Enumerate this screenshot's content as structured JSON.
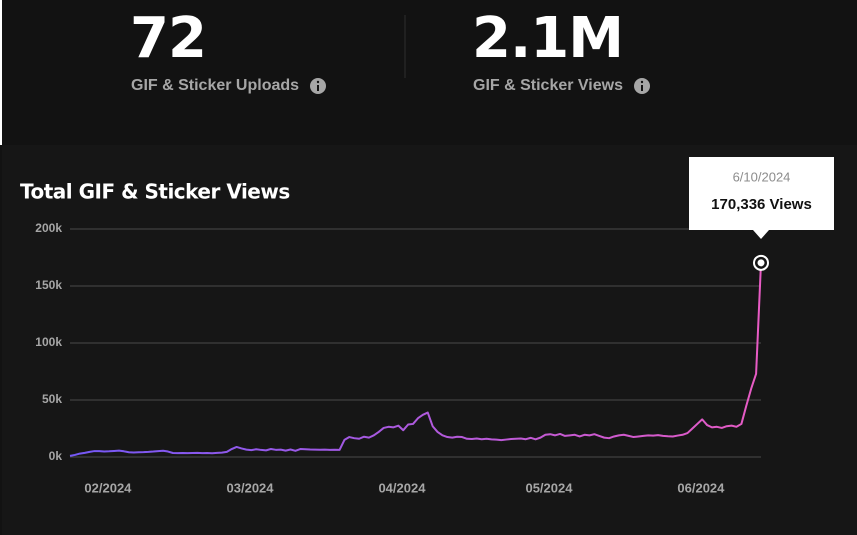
{
  "stats": [
    {
      "value": "72",
      "label": "GIF & Sticker Uploads"
    },
    {
      "value": "2.1M",
      "label": "GIF & Sticker Views"
    }
  ],
  "chart_data": {
    "type": "line",
    "title": "Total GIF & Sticker Views",
    "x": [
      "1/21/2024",
      "1/22/2024",
      "1/23/2024",
      "1/24/2024",
      "1/25/2024",
      "1/26/2024",
      "1/27/2024",
      "1/28/2024",
      "1/29/2024",
      "1/30/2024",
      "1/31/2024",
      "2/1/2024",
      "2/2/2024",
      "2/3/2024",
      "2/4/2024",
      "2/5/2024",
      "2/6/2024",
      "2/7/2024",
      "2/8/2024",
      "2/9/2024",
      "2/10/2024",
      "2/11/2024",
      "2/12/2024",
      "2/13/2024",
      "2/14/2024",
      "2/15/2024",
      "2/16/2024",
      "2/17/2024",
      "2/18/2024",
      "2/19/2024",
      "2/20/2024",
      "2/21/2024",
      "2/22/2024",
      "2/23/2024",
      "2/24/2024",
      "2/25/2024",
      "2/26/2024",
      "2/27/2024",
      "2/28/2024",
      "2/29/2024",
      "3/1/2024",
      "3/2/2024",
      "3/3/2024",
      "3/4/2024",
      "3/5/2024",
      "3/6/2024",
      "3/7/2024",
      "3/8/2024",
      "3/9/2024",
      "3/10/2024",
      "3/11/2024",
      "3/12/2024",
      "3/13/2024",
      "3/14/2024",
      "3/15/2024",
      "3/16/2024",
      "3/17/2024",
      "3/18/2024",
      "3/19/2024",
      "3/20/2024",
      "3/21/2024",
      "3/22/2024",
      "3/23/2024",
      "3/24/2024",
      "3/25/2024",
      "3/26/2024",
      "3/27/2024",
      "3/28/2024",
      "3/29/2024",
      "3/30/2024",
      "3/31/2024",
      "4/1/2024",
      "4/2/2024",
      "4/3/2024",
      "4/4/2024",
      "4/5/2024",
      "4/6/2024",
      "4/7/2024",
      "4/8/2024",
      "4/9/2024",
      "4/10/2024",
      "4/11/2024",
      "4/12/2024",
      "4/13/2024",
      "4/14/2024",
      "4/15/2024",
      "4/16/2024",
      "4/17/2024",
      "4/18/2024",
      "4/19/2024",
      "4/20/2024",
      "4/21/2024",
      "4/22/2024",
      "4/23/2024",
      "4/24/2024",
      "4/25/2024",
      "4/26/2024",
      "4/27/2024",
      "4/28/2024",
      "4/29/2024",
      "4/30/2024",
      "5/1/2024",
      "5/2/2024",
      "5/3/2024",
      "5/4/2024",
      "5/5/2024",
      "5/6/2024",
      "5/7/2024",
      "5/8/2024",
      "5/9/2024",
      "5/10/2024",
      "5/11/2024",
      "5/12/2024",
      "5/13/2024",
      "5/14/2024",
      "5/15/2024",
      "5/16/2024",
      "5/17/2024",
      "5/18/2024",
      "5/19/2024",
      "5/20/2024",
      "5/21/2024",
      "5/22/2024",
      "5/23/2024",
      "5/24/2024",
      "5/25/2024",
      "5/26/2024",
      "5/27/2024",
      "5/28/2024",
      "5/29/2024",
      "5/30/2024",
      "5/31/2024",
      "6/1/2024",
      "6/2/2024",
      "6/3/2024",
      "6/4/2024",
      "6/5/2024",
      "6/6/2024",
      "6/7/2024",
      "6/8/2024",
      "6/9/2024",
      "6/10/2024"
    ],
    "values": [
      1000,
      1800,
      3000,
      3600,
      4500,
      5200,
      5200,
      4800,
      5000,
      5300,
      5600,
      5000,
      4200,
      4000,
      4200,
      4300,
      4500,
      4800,
      5200,
      5500,
      4800,
      3500,
      3400,
      3500,
      3400,
      3500,
      3600,
      3400,
      3500,
      3300,
      3600,
      3800,
      4500,
      7000,
      8800,
      7500,
      6500,
      6000,
      6800,
      6200,
      5800,
      7000,
      6300,
      6500,
      5600,
      6600,
      5400,
      7000,
      6800,
      6600,
      6500,
      6400,
      6500,
      6300,
      6400,
      6200,
      15000,
      17500,
      16500,
      16000,
      17800,
      17000,
      19000,
      22000,
      25500,
      26500,
      26000,
      27500,
      23500,
      28500,
      29000,
      34000,
      37000,
      39000,
      27000,
      22000,
      19000,
      17500,
      17000,
      17800,
      17500,
      16000,
      15800,
      16200,
      15600,
      16000,
      15500,
      15200,
      14800,
      15300,
      15800,
      16000,
      16200,
      15600,
      16800,
      15500,
      17000,
      19500,
      20000,
      19000,
      20200,
      18500,
      19000,
      19500,
      18000,
      19500,
      19000,
      20000,
      18500,
      17000,
      16500,
      18000,
      19000,
      19500,
      18500,
      17500,
      18000,
      18500,
      19000,
      18800,
      19200,
      18500,
      18200,
      18000,
      18800,
      19500,
      21000,
      25000,
      29000,
      33000,
      28000,
      26000,
      26500,
      25500,
      27000,
      27500,
      26500,
      29000,
      45000,
      60000,
      73000,
      170336
    ],
    "colors": [
      "#7458f7",
      "#e85bc4"
    ],
    "xlim": [
      "1/21/2024",
      "6/10/2024"
    ],
    "xticks": [
      {
        "value": "2/1/2024",
        "label": "02/2024"
      },
      {
        "value": "3/1/2024",
        "label": "03/2024"
      },
      {
        "value": "4/1/2024",
        "label": "04/2024"
      },
      {
        "value": "5/1/2024",
        "label": "05/2024"
      },
      {
        "value": "6/1/2024",
        "label": "06/2024"
      }
    ],
    "ylim": [
      0,
      200000
    ],
    "yticks": [
      {
        "value": 0,
        "label": "0k"
      },
      {
        "value": 50000,
        "label": "50k"
      },
      {
        "value": 100000,
        "label": "100k"
      },
      {
        "value": 150000,
        "label": "150k"
      },
      {
        "value": 200000,
        "label": "200k"
      }
    ],
    "grid": true,
    "tooltip": "170,336 Views"
  }
}
